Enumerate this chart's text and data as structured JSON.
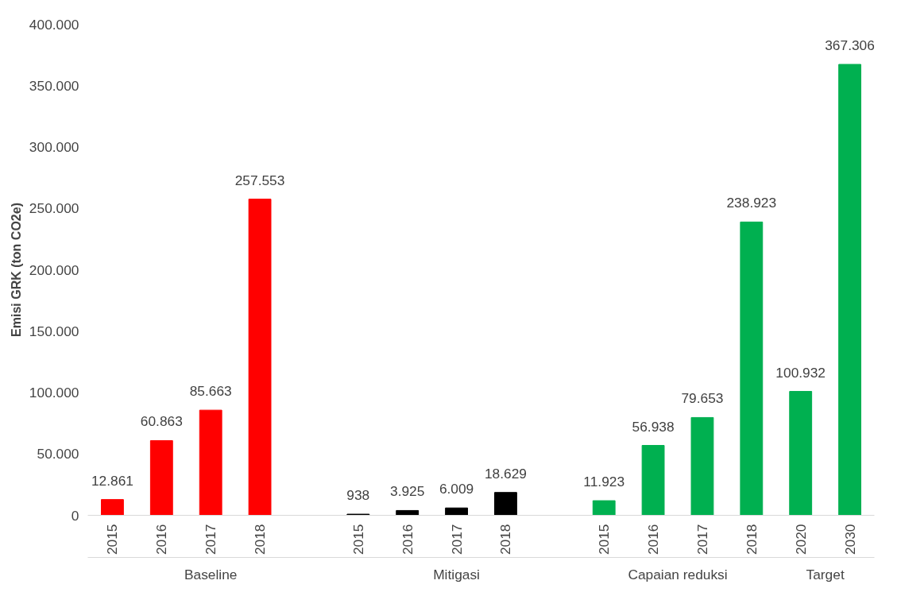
{
  "chart_data": {
    "type": "bar",
    "ylabel": "Emisi GRK (ton CO2e)",
    "categories": [
      "2015",
      "2016",
      "2017",
      "2018",
      null,
      "2015",
      "2016",
      "2017",
      "2018",
      null,
      "2015",
      "2016",
      "2017",
      "2018",
      "2020",
      "2030"
    ],
    "values": [
      12861,
      60863,
      85663,
      257553,
      null,
      938,
      3925,
      6009,
      18629,
      null,
      11923,
      56938,
      79653,
      238923,
      100932,
      367306
    ],
    "colors": [
      "#ff0000",
      "#ff0000",
      "#ff0000",
      "#ff0000",
      "#ffffff",
      "#000000",
      "#000000",
      "#000000",
      "#000000",
      "#ffffff",
      "#00b050",
      "#00b050",
      "#00b050",
      "#00b050",
      "#00b050",
      "#00b050"
    ],
    "value_labels": [
      "12.861",
      "60.863",
      "85.663",
      "257.553",
      null,
      "938",
      "3.925",
      "6.009",
      "18.629",
      null,
      "11.923",
      "56.938",
      "79.653",
      "238.923",
      "100.932",
      "367.306"
    ],
    "ylim": [
      0,
      400000
    ],
    "yticks": [
      {
        "value": 0,
        "label": "0"
      },
      {
        "value": 50000,
        "label": "50.000"
      },
      {
        "value": 100000,
        "label": "100.000"
      },
      {
        "value": 150000,
        "label": "150.000"
      },
      {
        "value": 200000,
        "label": "200.000"
      },
      {
        "value": 250000,
        "label": "250.000"
      },
      {
        "value": 300000,
        "label": "300.000"
      },
      {
        "value": 350000,
        "label": "350.000"
      },
      {
        "value": 400000,
        "label": "400.000"
      }
    ],
    "annotations": [
      "Baseline",
      "Mitigasi",
      "Capaian reduksi",
      "Target"
    ],
    "grid": false
  }
}
